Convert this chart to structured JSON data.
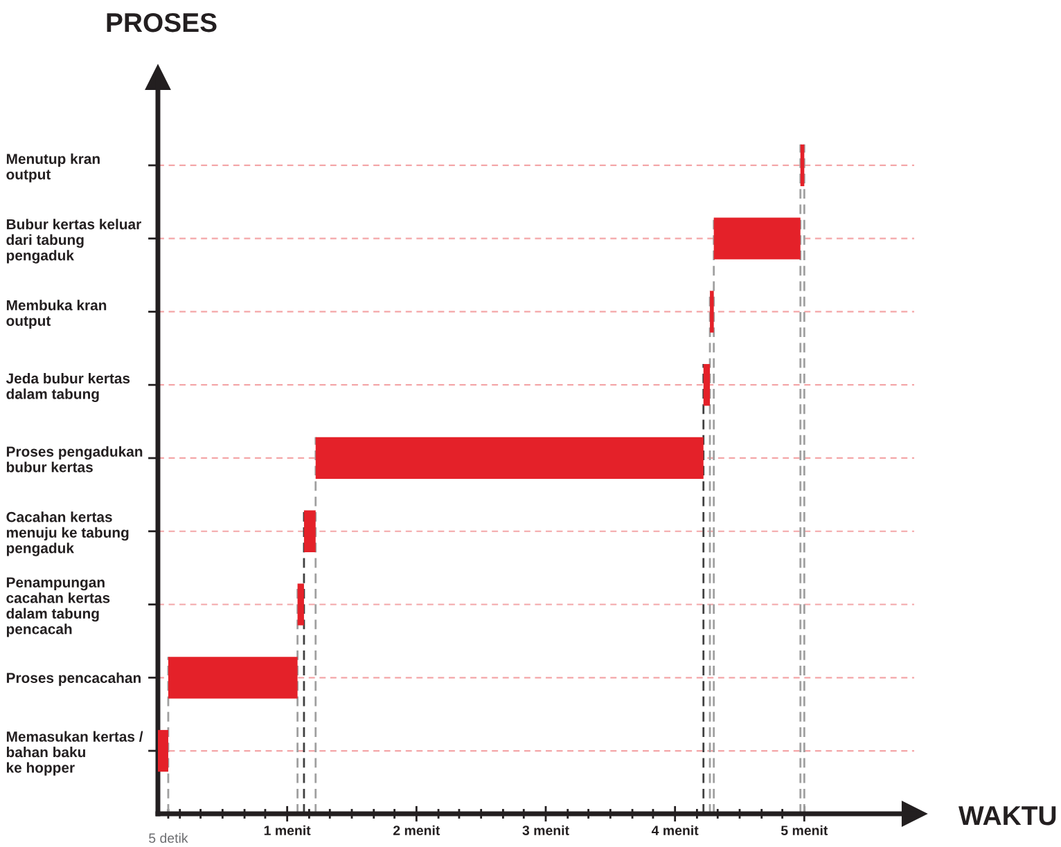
{
  "chart_data": {
    "type": "bar",
    "orientation": "horizontal",
    "ylabel": "PROSES",
    "xlabel": "WAKTU",
    "categories": [
      "Menutup kran\noutput",
      "Bubur kertas keluar\ndari tabung\npengaduk",
      "Membuka kran\noutput",
      "Jeda bubur kertas\ndalam tabung",
      "Proses pengadukan\nbubur kertas",
      "Cacahan kertas\nmenuju ke tabung\npengaduk",
      "Penampungan\ncacahan kertas\ndalam tabung\npencacah",
      "Proses pencacahan",
      "Memasukan kertas /\nbahan baku\nke hopper"
    ],
    "base": [
      4.97,
      4.3,
      4.27,
      4.22,
      1.22,
      1.13,
      1.08,
      0.08,
      0
    ],
    "values": [
      0.03,
      0.67,
      0.03,
      0.05,
      3.0,
      0.09,
      0.05,
      1.0,
      0.08
    ],
    "color": "#e42129",
    "xlim": [
      0,
      5.85
    ],
    "annotations": [
      "5 detik"
    ],
    "xticks": [
      {
        "value": 0.08,
        "label": null
      },
      {
        "value": 0.17,
        "label": null
      },
      {
        "value": 0.33,
        "label": null
      },
      {
        "value": 0.5,
        "label": null
      },
      {
        "value": 0.67,
        "label": null
      },
      {
        "value": 0.83,
        "label": null
      },
      {
        "value": 1,
        "label": "1 menit"
      },
      {
        "value": 1.17,
        "label": null
      },
      {
        "value": 1.33,
        "label": null
      },
      {
        "value": 1.5,
        "label": null
      },
      {
        "value": 1.67,
        "label": null
      },
      {
        "value": 1.83,
        "label": null
      },
      {
        "value": 2,
        "label": "2 menit"
      },
      {
        "value": 2.17,
        "label": null
      },
      {
        "value": 2.33,
        "label": null
      },
      {
        "value": 2.5,
        "label": null
      },
      {
        "value": 2.67,
        "label": null
      },
      {
        "value": 2.83,
        "label": null
      },
      {
        "value": 3,
        "label": "3 menit"
      },
      {
        "value": 3.17,
        "label": null
      },
      {
        "value": 3.33,
        "label": null
      },
      {
        "value": 3.5,
        "label": null
      },
      {
        "value": 3.67,
        "label": null
      },
      {
        "value": 3.83,
        "label": null
      },
      {
        "value": 4,
        "label": "4 menit"
      },
      {
        "value": 4.17,
        "label": null
      },
      {
        "value": 4.33,
        "label": null
      },
      {
        "value": 4.5,
        "label": null
      },
      {
        "value": 4.67,
        "label": null
      },
      {
        "value": 4.83,
        "label": null
      },
      {
        "value": 5,
        "label": "5 menit"
      }
    ],
    "grid": "y",
    "ref_lines": [
      {
        "axis": "x",
        "value": 0.08,
        "color": "#a0a0a0",
        "line_style": "dashed"
      },
      {
        "axis": "x",
        "value": 1.08,
        "color": "#a0a0a0",
        "line_style": "dashed"
      },
      {
        "axis": "x",
        "value": 1.13,
        "color": "#404040",
        "line_style": "dashed"
      },
      {
        "axis": "x",
        "value": 1.22,
        "color": "#a0a0a0",
        "line_style": "dashed"
      },
      {
        "axis": "x",
        "value": 4.22,
        "color": "#404040",
        "line_style": "dashed"
      },
      {
        "axis": "x",
        "value": 4.27,
        "color": "#a0a0a0",
        "line_style": "dashed"
      },
      {
        "axis": "x",
        "value": 4.3,
        "color": "#a0a0a0",
        "line_style": "dashed"
      },
      {
        "axis": "x",
        "value": 4.97,
        "color": "#a0a0a0",
        "line_style": "dashed"
      },
      {
        "axis": "x",
        "value": 5,
        "color": "#a0a0a0",
        "line_style": "dashed"
      }
    ]
  }
}
